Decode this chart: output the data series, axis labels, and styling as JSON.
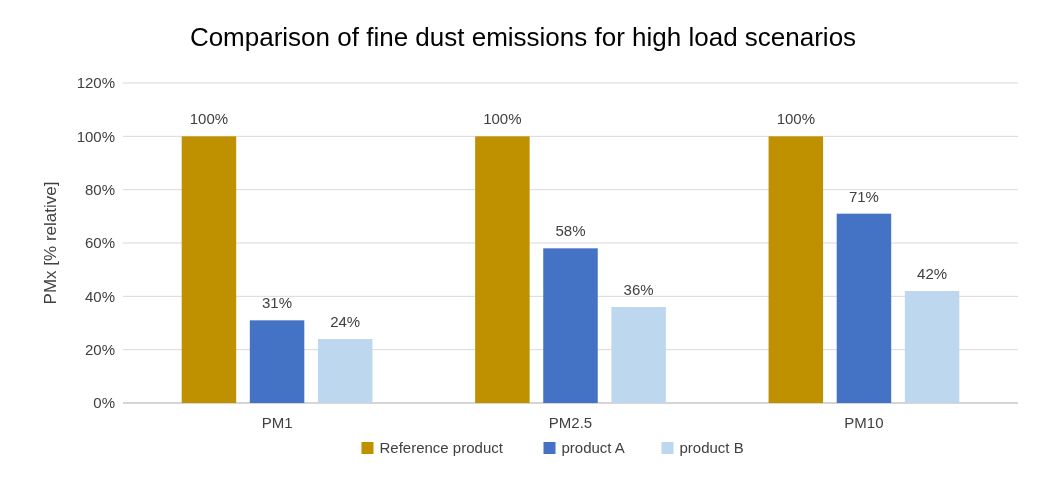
{
  "chart_data": {
    "type": "bar",
    "title": "Comparison of fine dust emissions for high load scenarios",
    "ylabel": "PMx [% relative]",
    "categories": [
      "PM1",
      "PM2.5",
      "PM10"
    ],
    "series": [
      {
        "name": "Reference product",
        "color": "#bf9000",
        "values": [
          100,
          100,
          100
        ],
        "value_labels": [
          "100%",
          "100%",
          "100%"
        ]
      },
      {
        "name": "product A",
        "color": "#4472c4",
        "values": [
          31,
          58,
          71
        ],
        "value_labels": [
          "31%",
          "58%",
          "71%"
        ]
      },
      {
        "name": "product B",
        "color": "#bdd7ee",
        "values": [
          24,
          36,
          42
        ],
        "value_labels": [
          "24%",
          "36%",
          "42%"
        ]
      }
    ],
    "ylim": [
      0,
      120
    ],
    "yticks": [
      {
        "value": 0,
        "label": "0%"
      },
      {
        "value": 20,
        "label": "20%"
      },
      {
        "value": 40,
        "label": "40%"
      },
      {
        "value": 60,
        "label": "60%"
      },
      {
        "value": 80,
        "label": "80%"
      },
      {
        "value": 100,
        "label": "100%"
      },
      {
        "value": 120,
        "label": "120%"
      }
    ],
    "grid": "y",
    "legend": "bottom"
  }
}
